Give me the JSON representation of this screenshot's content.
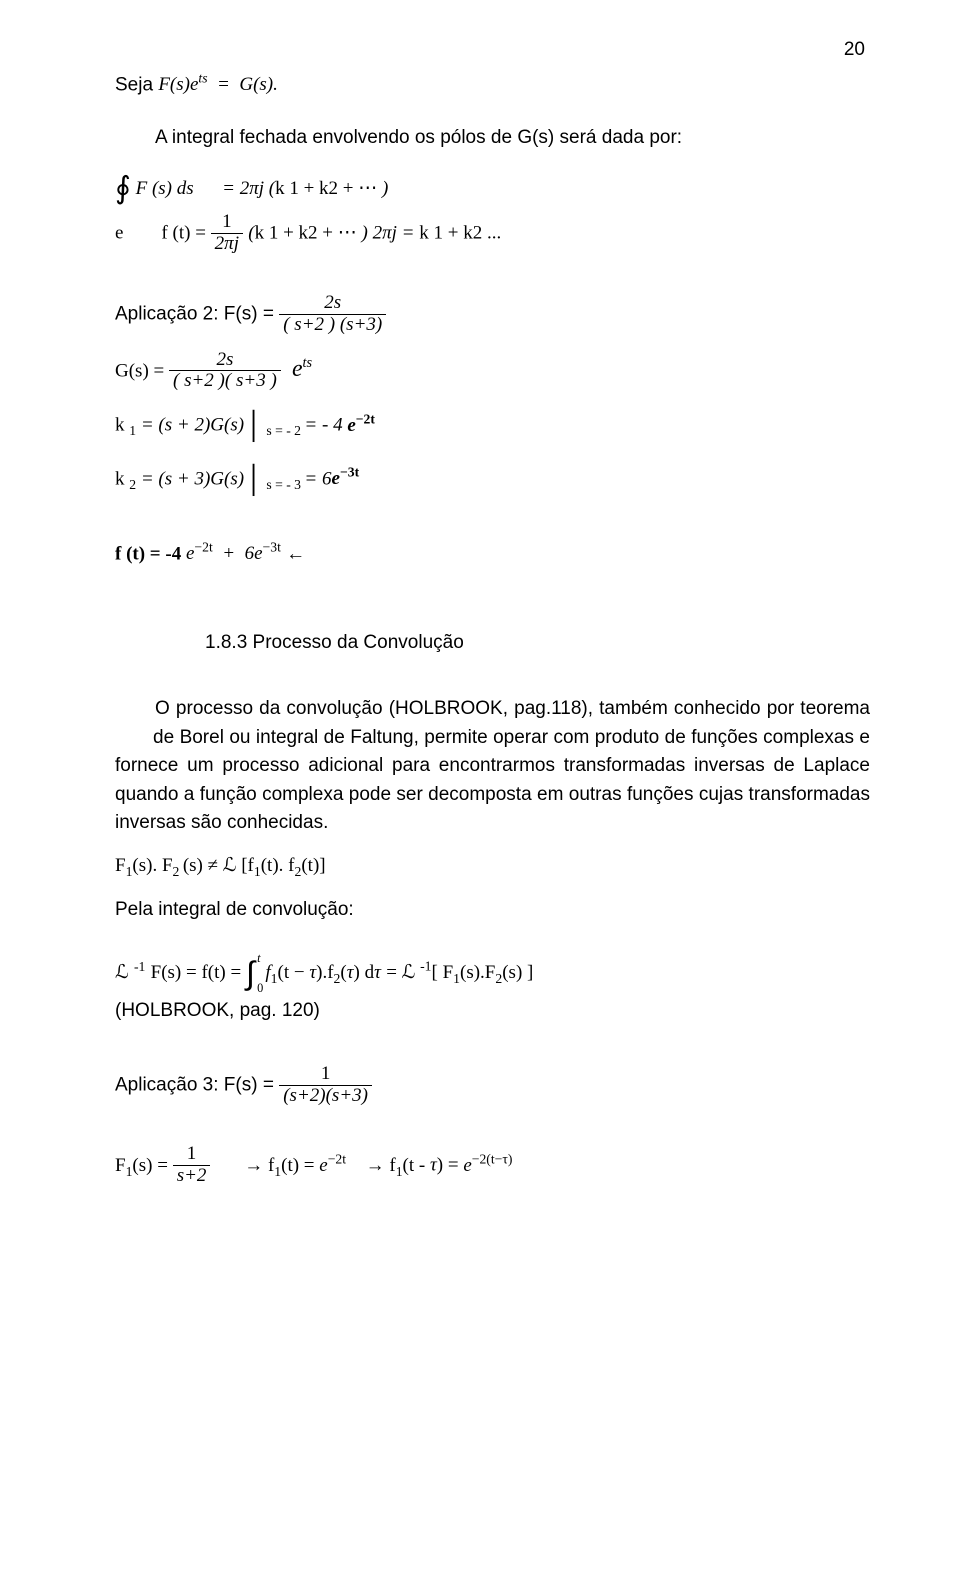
{
  "page_number": "20",
  "line1": {
    "pre": "Seja ",
    "eq": "F(s)e^{ts} = G(s)."
  },
  "line2": "A integral fechada envolvendo os pólos de G(s) será dada por:",
  "line3a_lhs": "∮ F(s) ds",
  "line3a_rhs": "= 2πj (k1 + k2 + ⋯ )",
  "line3b_pre": "e         f (t) = ",
  "line3b_frac_num": "1",
  "line3b_frac_den": "2πj",
  "line3b_rest": " (k1 + k2 + ⋯ ) 2πj = k1 + k2 ...",
  "line4_pre": "Aplicação 2: F(s) = ",
  "line4_frac_num": "2s",
  "line4_frac_den": "( s+2 ) (s+3)",
  "line5_pre": "G(s) = ",
  "line5_frac_num": "2s",
  "line5_frac_den": "( s+2 )( s+3 )",
  "line5_post": " e^{ts}",
  "line6": "k₁ = (s + 2)G(s) |_{s = -2} = -4 e^{-2t}",
  "line7": "k₂ = (s + 3)G(s) |_{s = -3} = 6e^{-3t}",
  "line8_pre": "f (t) = -4 ",
  "line8_mid": "e^{-2t} + 6e^{-3t}",
  "line8_arrow": " ←",
  "section_head": "1.8.3 Processo da Convolução",
  "body_para": "O processo da convolução (HOLBROOK, pag.118), também conhecido por teorema        de Borel ou integral de Faltung, permite operar com produto de funções complexas e fornece um processo adicional para encontrarmos transformadas inversas de Laplace quando a função complexa pode ser decomposta em outras funções cujas transformadas inversas são conhecidas.",
  "line_f1f2": "F₁(s). F₂ (s) ≠ ℒ [f₁(t). f₂(t)]",
  "line_pela": "Pela integral de convolução:",
  "lineL_pre": "ℒ ⁻¹ F(s) = f(t) = ",
  "lineL_int_up": "t",
  "lineL_int_dn": "0",
  "lineL_mid": "f₁(t − τ).f₂(τ) dτ = ℒ ⁻¹[ F₁(s).F₂(s) ]",
  "lineL_ref": "(HOLBROOK, pag. 120)",
  "line_app3_pre": "Aplicação 3: F(s) = ",
  "line_app3_num": "1",
  "line_app3_den": "(s+2)(s+3)",
  "lineF1_pre": "F₁(s) = ",
  "lineF1_num": "1",
  "lineF1_den": "s+2",
  "lineF1_arrow1": " → f₁(t) = ",
  "lineF1_exp1": "e^{-2t}",
  "lineF1_arrow2": " → f₁(t - τ) = ",
  "lineF1_exp2": "e^{-2(t-τ)}"
}
